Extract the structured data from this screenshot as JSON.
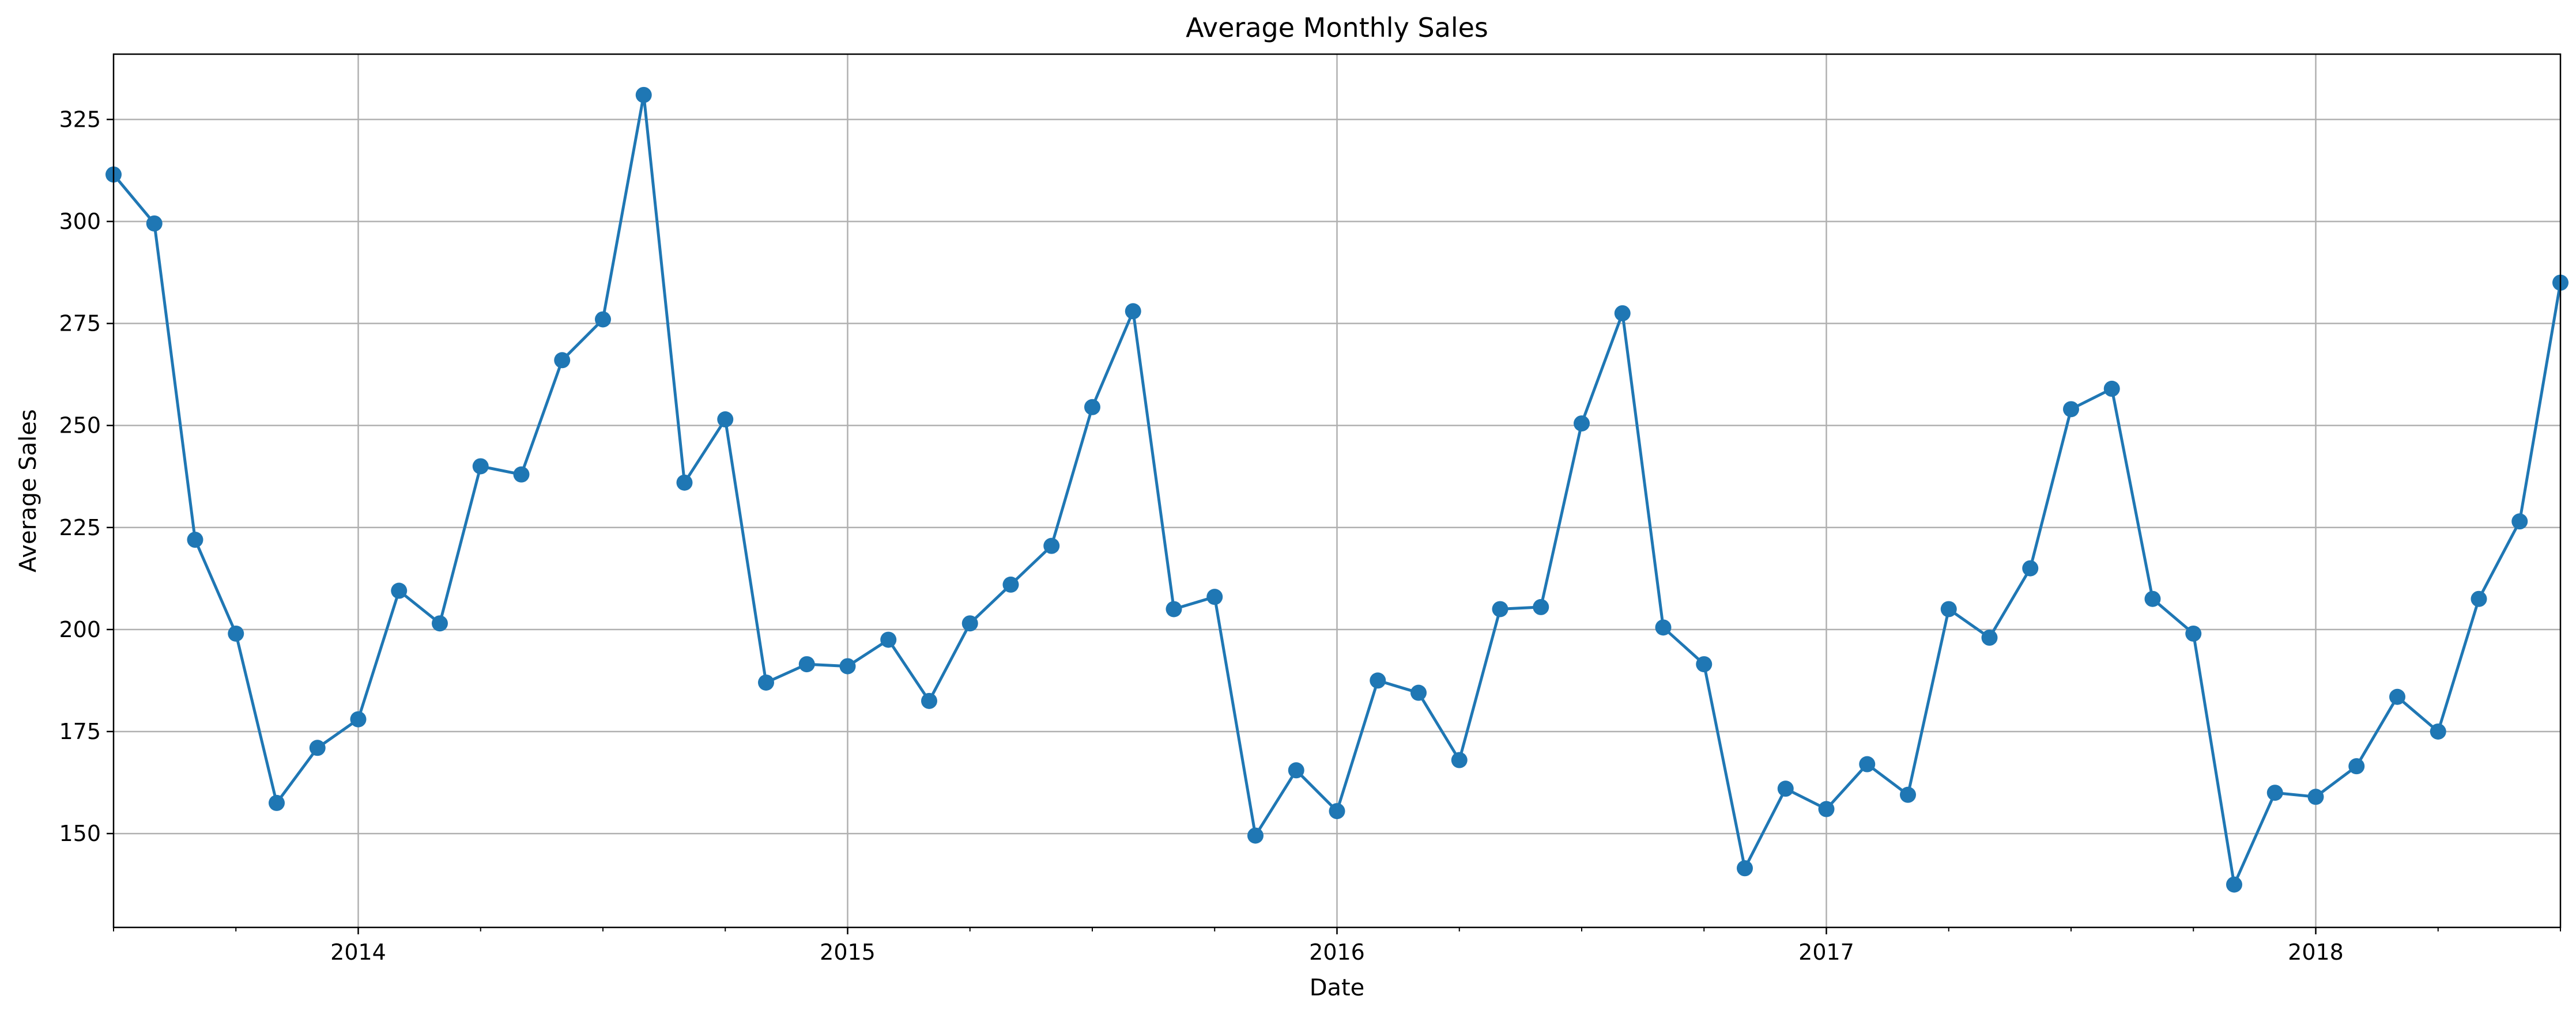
{
  "chart_data": {
    "type": "line",
    "title": "Average Monthly Sales",
    "xlabel": "Date",
    "ylabel": "Average Sales",
    "grid": true,
    "legend": "none",
    "color": "#1f77b4",
    "marker": "circle",
    "xlim": [
      "2013-07",
      "2018-07"
    ],
    "ylim": [
      127,
      341
    ],
    "x_ticks": [
      {
        "date": "2014-01",
        "label": "2014"
      },
      {
        "date": "2015-01",
        "label": "2015"
      },
      {
        "date": "2016-01",
        "label": "2016"
      },
      {
        "date": "2017-01",
        "label": "2017"
      },
      {
        "date": "2018-01",
        "label": "2018"
      }
    ],
    "y_ticks": [
      150,
      175,
      200,
      225,
      250,
      275,
      300,
      325
    ],
    "series": [
      {
        "x": [
          "2013-07",
          "2013-08",
          "2013-09",
          "2013-10",
          "2013-11",
          "2013-12",
          "2014-01",
          "2014-02",
          "2014-03",
          "2014-04",
          "2014-05",
          "2014-06",
          "2014-07",
          "2014-08",
          "2014-09",
          "2014-10",
          "2014-11",
          "2014-12",
          "2015-01",
          "2015-02",
          "2015-03",
          "2015-04",
          "2015-05",
          "2015-06",
          "2015-07",
          "2015-08",
          "2015-09",
          "2015-10",
          "2015-11",
          "2015-12",
          "2016-01",
          "2016-02",
          "2016-03",
          "2016-04",
          "2016-05",
          "2016-06",
          "2016-07",
          "2016-08",
          "2016-09",
          "2016-10",
          "2016-11",
          "2016-12",
          "2017-01",
          "2017-02",
          "2017-03",
          "2017-04",
          "2017-05",
          "2017-06",
          "2017-07",
          "2017-08",
          "2017-09",
          "2017-10",
          "2017-11",
          "2017-12",
          "2018-01",
          "2018-02",
          "2018-03",
          "2018-04",
          "2018-05",
          "2018-06",
          "2018-07"
        ],
        "values": [
          311.5,
          299.5,
          222.0,
          199.0,
          157.5,
          171.0,
          178.0,
          209.5,
          201.5,
          240.0,
          238.0,
          266.0,
          276.0,
          331.0,
          236.0,
          251.5,
          187.0,
          191.5,
          191.0,
          197.5,
          182.5,
          201.5,
          211.0,
          220.5,
          254.5,
          278.0,
          205.0,
          208.0,
          149.5,
          165.5,
          155.5,
          187.5,
          184.5,
          168.0,
          205.0,
          205.5,
          250.5,
          277.5,
          200.5,
          191.5,
          141.5,
          161.0,
          156.0,
          167.0,
          159.5,
          205.0,
          198.0,
          215.0,
          254.0,
          259.0,
          207.5,
          199.0,
          137.5,
          160.0,
          159.0,
          166.5,
          183.5,
          175.0,
          207.5,
          226.5,
          285.0
        ]
      }
    ]
  }
}
